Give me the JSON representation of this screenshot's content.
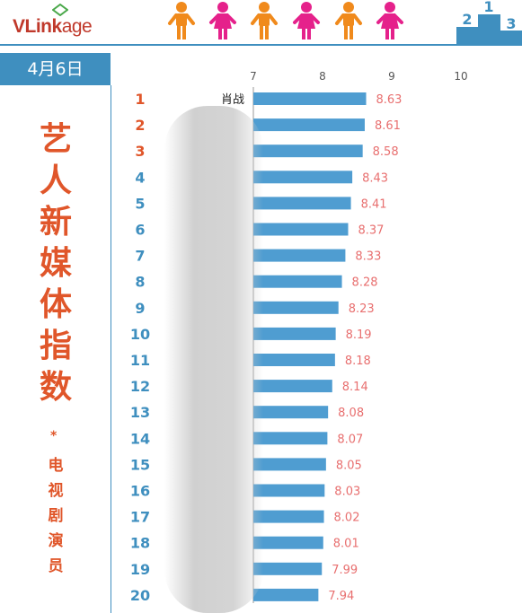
{
  "brand": {
    "logo_text_v": "V",
    "logo_text_link": "Link",
    "logo_text_age": "age"
  },
  "date": "4月6日",
  "title_chars": [
    "艺",
    "人",
    "新",
    "媒",
    "体",
    "指",
    "数"
  ],
  "title_star": "*",
  "subtitle_chars": [
    "电",
    "视",
    "剧",
    "演",
    "员"
  ],
  "chart_data": {
    "type": "bar",
    "orientation": "horizontal",
    "xlim": [
      7,
      10
    ],
    "xticks": [
      "7",
      "8",
      "9",
      "10"
    ],
    "ranks": [
      "1",
      "2",
      "3",
      "4",
      "5",
      "6",
      "7",
      "8",
      "9",
      "10",
      "11",
      "12",
      "13",
      "14",
      "15",
      "16",
      "17",
      "18",
      "19",
      "20"
    ],
    "categories": [
      "肖战",
      "",
      "",
      "",
      "",
      "",
      "",
      "",
      "",
      "",
      "",
      "",
      "",
      "",
      "",
      "",
      "",
      "",
      "",
      ""
    ],
    "values": [
      8.63,
      8.61,
      8.58,
      8.43,
      8.41,
      8.37,
      8.33,
      8.28,
      8.23,
      8.19,
      8.18,
      8.14,
      8.08,
      8.07,
      8.05,
      8.03,
      8.02,
      8.01,
      7.99,
      7.94
    ],
    "value_labels": [
      "8.63",
      "8.61",
      "8.58",
      "8.43",
      "8.41",
      "8.37",
      "8.33",
      "8.28",
      "8.23",
      "8.19",
      "8.18",
      "8.14",
      "8.08",
      "8.07",
      "8.05",
      "8.03",
      "8.02",
      "8.01",
      "7.99",
      "7.94"
    ]
  },
  "colors": {
    "bar": "#4f9dd1",
    "rank_top3": "#e0562a",
    "rank_other": "#3f8fbf",
    "value_label": "#e86f6f",
    "accent": "#3f8fbf",
    "title": "#e0562a",
    "figure_orange": "#f08a1c",
    "figure_pink": "#e5218b"
  },
  "icons": [
    "logo-icon",
    "person-icon",
    "podium-icon"
  ]
}
